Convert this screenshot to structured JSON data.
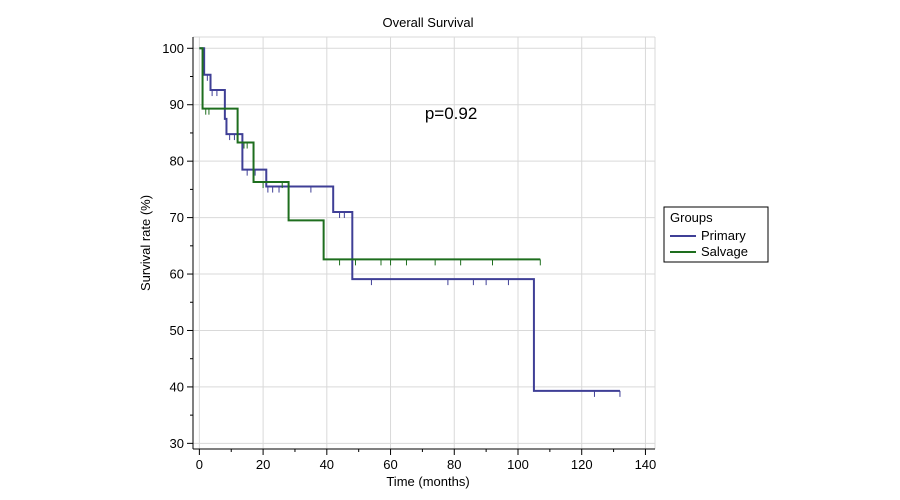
{
  "chart_data": {
    "type": "line",
    "title": "Overall Survival",
    "xlabel": "Time (months)",
    "ylabel": "Survival rate (%)",
    "xlim": [
      -2,
      143
    ],
    "ylim": [
      29,
      102
    ],
    "xticks": [
      0,
      20,
      40,
      60,
      80,
      100,
      120,
      140
    ],
    "yticks": [
      30,
      40,
      50,
      60,
      70,
      80,
      90,
      100
    ],
    "grid": true,
    "legend": {
      "title": "Groups",
      "position": "right"
    },
    "annotation": {
      "text": "p=0.92",
      "x": 79,
      "y": 87.5
    },
    "series": [
      {
        "name": "Primary",
        "color": "#3f3f96",
        "steps": [
          [
            0,
            100
          ],
          [
            1.5,
            100
          ],
          [
            1.5,
            95.3
          ],
          [
            3.5,
            95.3
          ],
          [
            3.5,
            92.6
          ],
          [
            8,
            92.6
          ],
          [
            8,
            87.5
          ],
          [
            8.5,
            87.5
          ],
          [
            8.5,
            84.8
          ],
          [
            13.5,
            84.8
          ],
          [
            13.5,
            78.5
          ],
          [
            21,
            78.5
          ],
          [
            21,
            75.5
          ],
          [
            42,
            75.5
          ],
          [
            42,
            71
          ],
          [
            48,
            71
          ],
          [
            48,
            59.1
          ],
          [
            105,
            59.1
          ],
          [
            105,
            39.3
          ],
          [
            132,
            39.3
          ]
        ],
        "censors": [
          [
            2.5,
            95.3
          ],
          [
            4,
            92.6
          ],
          [
            5.5,
            92.6
          ],
          [
            9.5,
            84.8
          ],
          [
            11,
            84.8
          ],
          [
            15,
            78.5
          ],
          [
            17.5,
            78.5
          ],
          [
            21.5,
            75.5
          ],
          [
            23,
            75.5
          ],
          [
            25,
            75.5
          ],
          [
            28,
            75.5
          ],
          [
            35,
            75.5
          ],
          [
            44,
            71
          ],
          [
            45.5,
            71
          ],
          [
            54,
            59.1
          ],
          [
            78,
            59.1
          ],
          [
            86,
            59.1
          ],
          [
            90,
            59.1
          ],
          [
            97,
            59.1
          ],
          [
            124,
            39.3
          ],
          [
            132,
            39.3
          ]
        ]
      },
      {
        "name": "Salvage",
        "color": "#1e6e1e",
        "steps": [
          [
            0,
            100
          ],
          [
            1,
            100
          ],
          [
            1,
            89.3
          ],
          [
            12,
            89.3
          ],
          [
            12,
            83.3
          ],
          [
            17,
            83.3
          ],
          [
            17,
            76.3
          ],
          [
            28,
            76.3
          ],
          [
            28,
            69.5
          ],
          [
            39,
            69.5
          ],
          [
            39,
            62.6
          ],
          [
            107,
            62.6
          ]
        ],
        "censors": [
          [
            2,
            89.3
          ],
          [
            3,
            89.3
          ],
          [
            14,
            83.3
          ],
          [
            15,
            83.3
          ],
          [
            20,
            76.3
          ],
          [
            26,
            76.3
          ],
          [
            44,
            62.6
          ],
          [
            49,
            62.6
          ],
          [
            57,
            62.6
          ],
          [
            60,
            62.6
          ],
          [
            65,
            62.6
          ],
          [
            74,
            62.6
          ],
          [
            82,
            62.6
          ],
          [
            92,
            62.6
          ],
          [
            107,
            62.6
          ]
        ]
      }
    ]
  }
}
